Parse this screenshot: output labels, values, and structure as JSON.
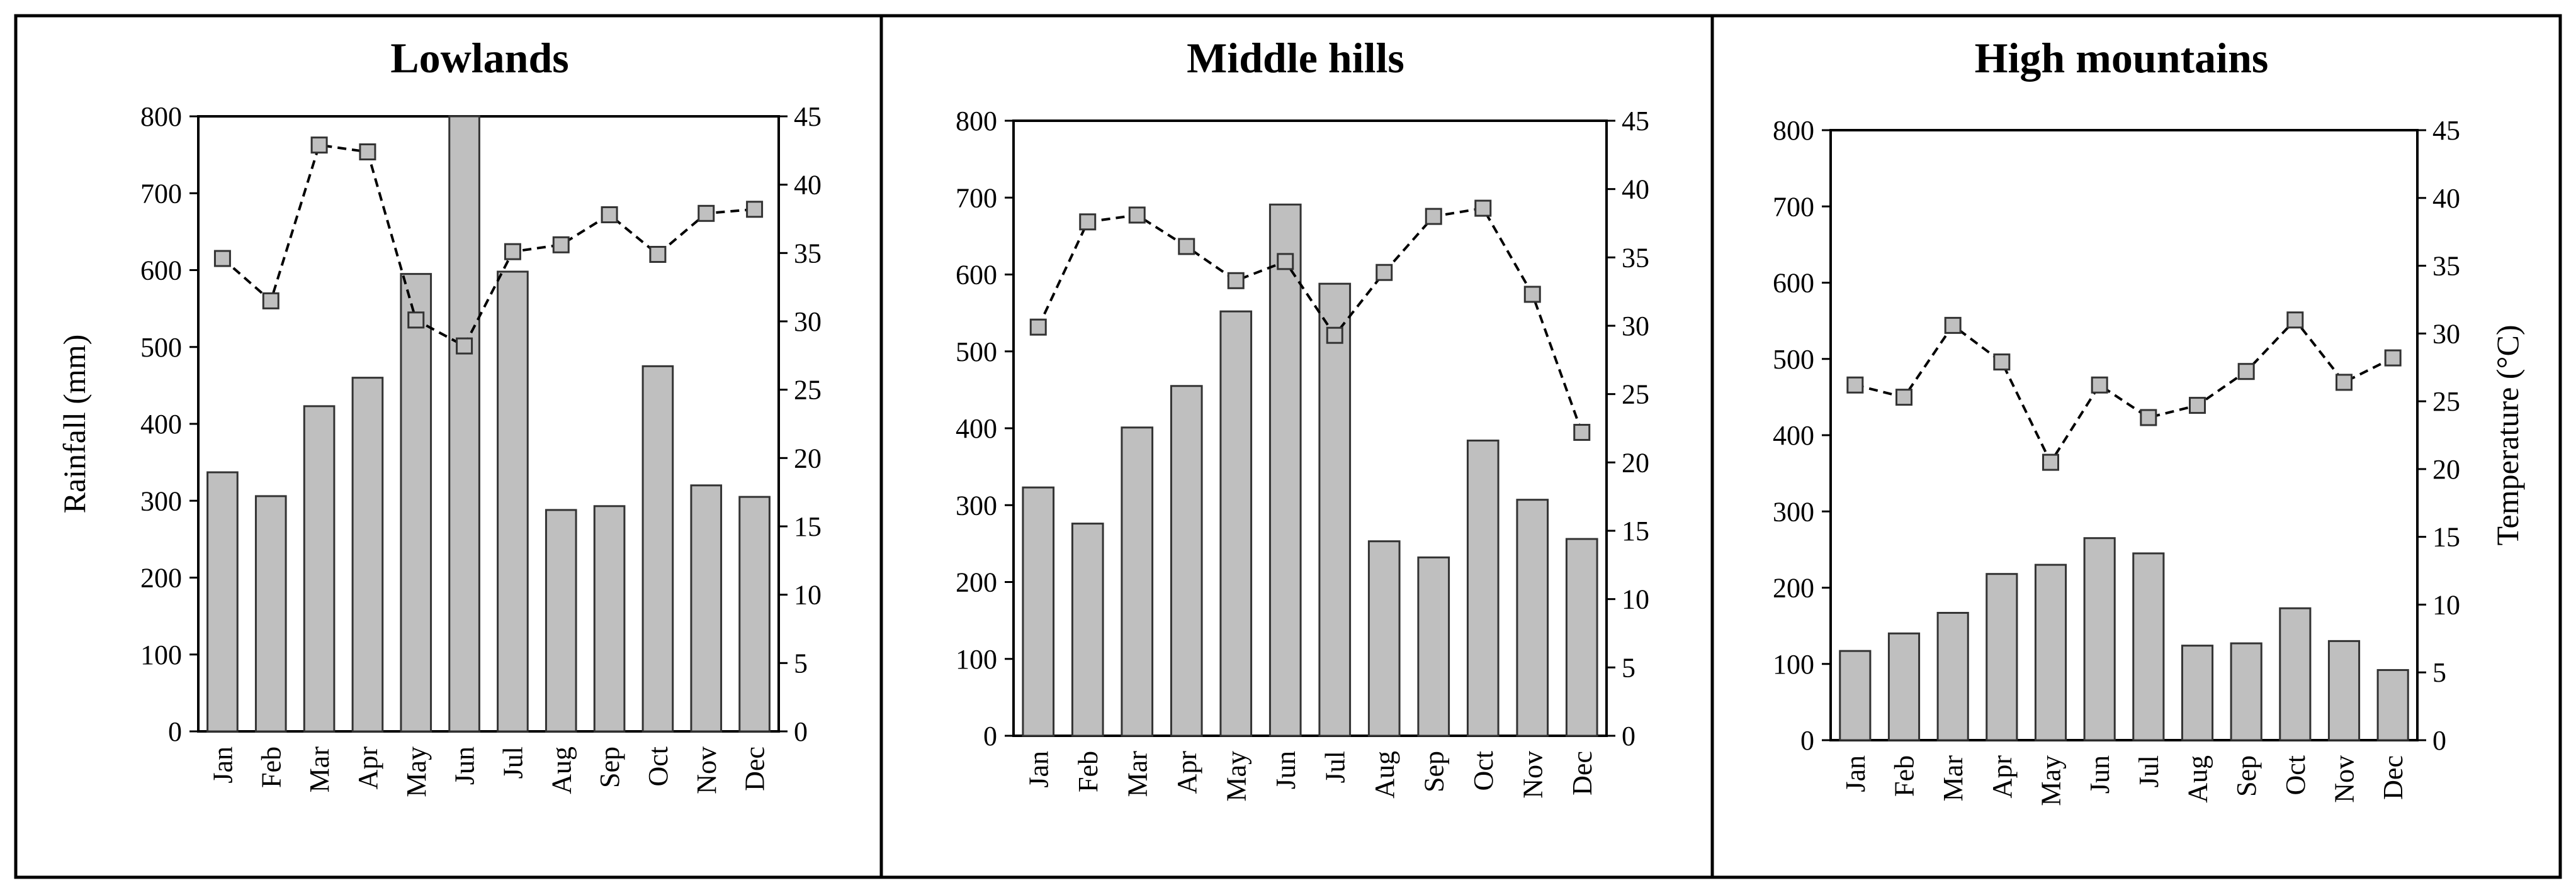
{
  "chart_data": [
    {
      "type": "bar+line",
      "title": "Lowlands",
      "categories": [
        "Jan",
        "Feb",
        "Mar",
        "Apr",
        "May",
        "Jun",
        "Jul",
        "Aug",
        "Sep",
        "Oct",
        "Nov",
        "Dec"
      ],
      "series": [
        {
          "kind": "bar",
          "axis": "left",
          "values": [
            337,
            306,
            423,
            460,
            595,
            800,
            598,
            288,
            293,
            475,
            320,
            305
          ]
        },
        {
          "kind": "line",
          "axis": "right",
          "values": [
            34.6,
            31.5,
            42.9,
            42.4,
            30.1,
            28.2,
            35.1,
            35.6,
            37.8,
            34.9,
            37.9,
            38.2
          ]
        }
      ],
      "ylabel": "Rainfall (mm)",
      "ylabel2": "",
      "ylim": [
        0,
        800
      ],
      "ylim2": [
        0,
        45
      ],
      "yticks": [
        "0",
        "100",
        "200",
        "300",
        "400",
        "500",
        "600",
        "700",
        "800"
      ],
      "yticks2": [
        "0",
        "5",
        "10",
        "15",
        "20",
        "25",
        "30",
        "35",
        "40",
        "45"
      ]
    },
    {
      "type": "bar+line",
      "title": "Middle hills",
      "categories": [
        "Jan",
        "Feb",
        "Mar",
        "Apr",
        "May",
        "Jun",
        "Jul",
        "Aug",
        "Sep",
        "Oct",
        "Nov",
        "Dec"
      ],
      "series": [
        {
          "kind": "bar",
          "axis": "left",
          "values": [
            323,
            276,
            401,
            455,
            552,
            691,
            588,
            253,
            232,
            384,
            307,
            256
          ]
        },
        {
          "kind": "line",
          "axis": "right",
          "values": [
            29.9,
            37.6,
            38.1,
            35.8,
            33.3,
            34.7,
            29.3,
            33.9,
            38.0,
            38.6,
            32.3,
            22.2
          ]
        }
      ],
      "ylabel": "",
      "ylabel2": "",
      "ylim": [
        0,
        800
      ],
      "ylim2": [
        0,
        45
      ],
      "yticks": [
        "0",
        "100",
        "200",
        "300",
        "400",
        "500",
        "600",
        "700",
        "800"
      ],
      "yticks2": [
        "0",
        "5",
        "10",
        "15",
        "20",
        "25",
        "30",
        "35",
        "40",
        "45"
      ]
    },
    {
      "type": "bar+line",
      "title": "High mountains",
      "categories": [
        "Jan",
        "Feb",
        "Mar",
        "Apr",
        "May",
        "Jun",
        "Jul",
        "Aug",
        "Sep",
        "Oct",
        "Nov",
        "Dec"
      ],
      "series": [
        {
          "kind": "bar",
          "axis": "left",
          "values": [
            117,
            140,
            167,
            218,
            230,
            265,
            245,
            124,
            127,
            173,
            130,
            92
          ]
        },
        {
          "kind": "line",
          "axis": "right",
          "values": [
            26.2,
            25.3,
            30.6,
            27.9,
            20.5,
            26.2,
            23.8,
            24.7,
            27.2,
            31.0,
            26.4,
            28.2
          ]
        }
      ],
      "ylabel": "",
      "ylabel2": "Temperature (°C)",
      "ylim": [
        0,
        800
      ],
      "ylim2": [
        0,
        45
      ],
      "yticks": [
        "0",
        "100",
        "200",
        "300",
        "400",
        "500",
        "600",
        "700",
        "800"
      ],
      "yticks2": [
        "0",
        "5",
        "10",
        "15",
        "20",
        "25",
        "30",
        "35",
        "40",
        "45"
      ]
    }
  ],
  "colors": {
    "bar_fill": "#bfbfbf",
    "bar_stroke": "#333333",
    "line": "#000000",
    "marker_fill": "#c0c0c0",
    "marker_stroke": "#333333"
  }
}
